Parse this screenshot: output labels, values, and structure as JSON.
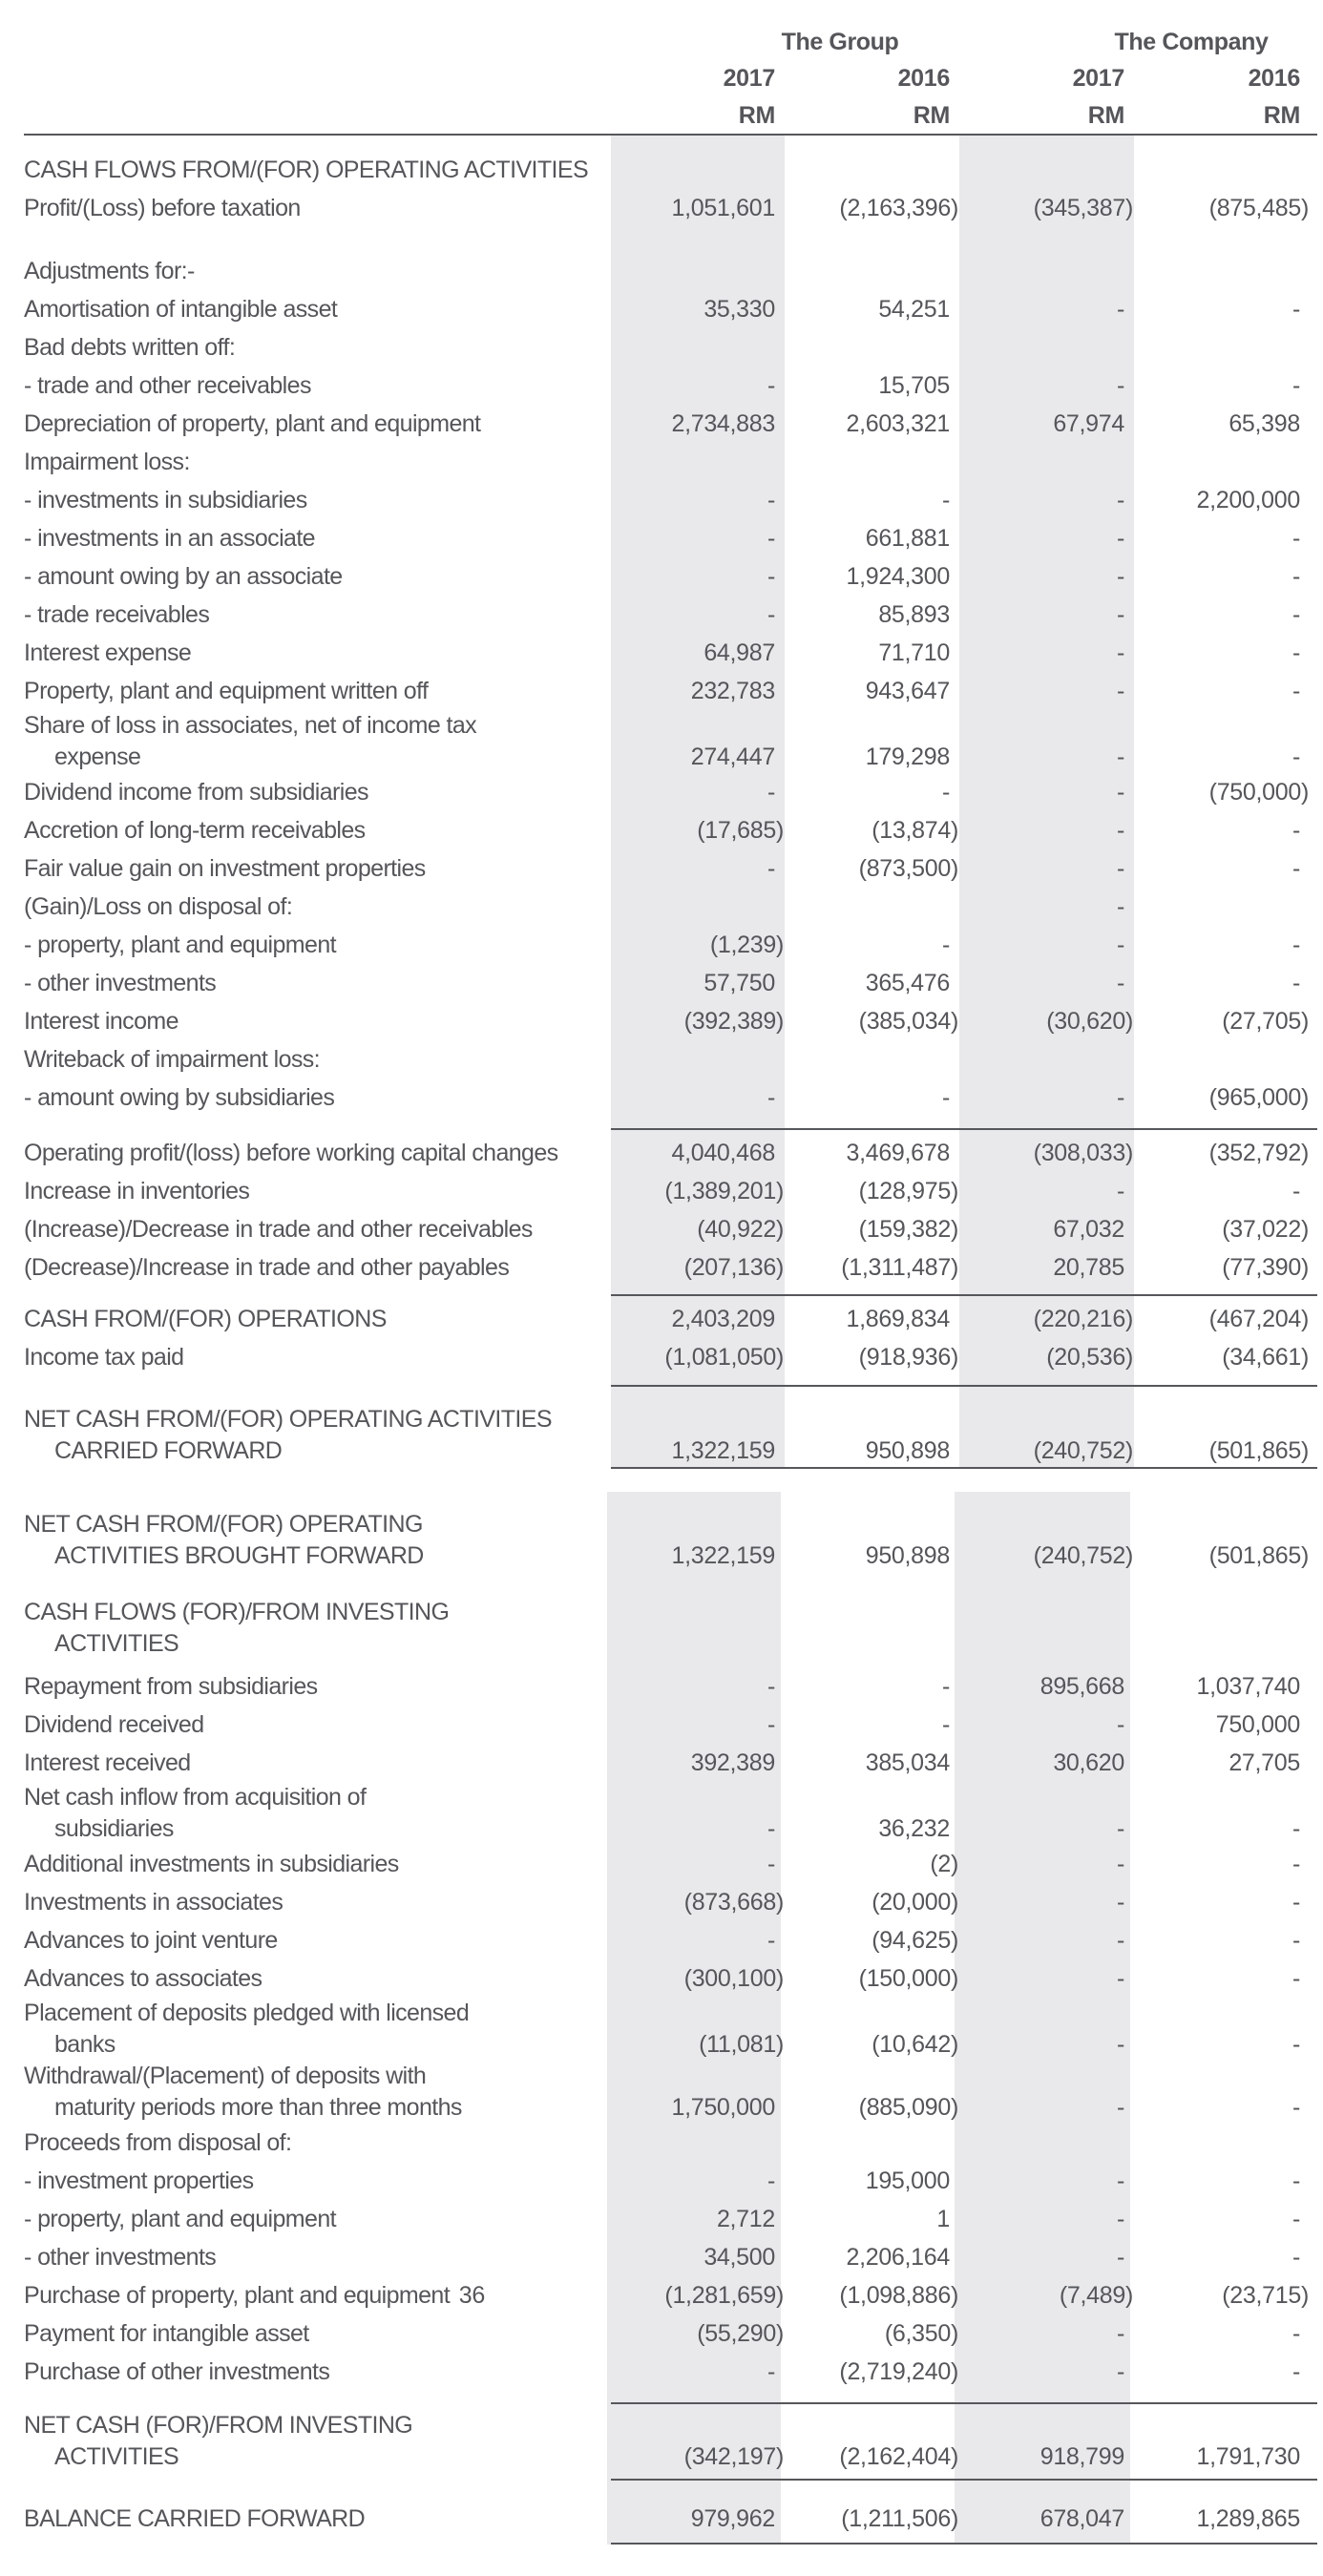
{
  "header": {
    "group_label": "The Group",
    "company_label": "The Company",
    "years": [
      "2017",
      "2016",
      "2017",
      "2016"
    ],
    "units": [
      "RM",
      "RM",
      "RM",
      "RM"
    ]
  },
  "colors": {
    "band": "#e9e9eb",
    "text": "#55565a",
    "rule": "#56575b"
  },
  "table": {
    "columns": [
      "The Group 2017 RM",
      "The Group 2016 RM",
      "The Company 2017 RM",
      "The Company 2016 RM"
    ],
    "first_block": [
      {
        "type": "gap",
        "h": 16
      },
      {
        "label": "CASH FLOWS FROM/(FOR) OPERATING ACTIVITIES",
        "g17": "",
        "g16": "",
        "c17": "",
        "c16": ""
      },
      {
        "label": "Profit/(Loss) before taxation",
        "g17": "1,051,601",
        "g16": "(2,163,396)",
        "c17": "(345,387)",
        "c16": "(875,485)"
      },
      {
        "type": "gap",
        "h": 26
      },
      {
        "label": "Adjustments for:-",
        "g17": "",
        "g16": "",
        "c17": "",
        "c16": ""
      },
      {
        "label": "Amortisation of intangible asset",
        "g17": "35,330",
        "g16": "54,251",
        "c17": "-",
        "c16": "-"
      },
      {
        "label": "Bad debts written off:",
        "g17": "",
        "g16": "",
        "c17": "",
        "c16": ""
      },
      {
        "label": "- trade and other receivables",
        "g17": "-",
        "g16": "15,705",
        "c17": "-",
        "c16": "-"
      },
      {
        "label": "Depreciation of property, plant and equipment",
        "g17": "2,734,883",
        "g16": "2,603,321",
        "c17": "67,974",
        "c16": "65,398"
      },
      {
        "label": "Impairment loss:",
        "g17": "",
        "g16": "",
        "c17": "",
        "c16": ""
      },
      {
        "label": "- investments in subsidiaries",
        "g17": "-",
        "g16": "-",
        "c17": "-",
        "c16": "2,200,000"
      },
      {
        "label": "- investments in an associate",
        "g17": "-",
        "g16": "661,881",
        "c17": "-",
        "c16": "-"
      },
      {
        "label": "- amount owing by an associate",
        "g17": "-",
        "g16": "1,924,300",
        "c17": "-",
        "c16": "-"
      },
      {
        "label": "- trade receivables",
        "g17": "-",
        "g16": "85,893",
        "c17": "-",
        "c16": "-"
      },
      {
        "label": "Interest expense",
        "g17": "64,987",
        "g16": "71,710",
        "c17": "-",
        "c16": "-"
      },
      {
        "label": "Property, plant and equipment written off",
        "g17": "232,783",
        "g16": "943,647",
        "c17": "-",
        "c16": "-"
      },
      {
        "label": "Share of loss in associates, net of income tax",
        "label2": "expense",
        "g17": "274,447",
        "g16": "179,298",
        "c17": "-",
        "c16": "-"
      },
      {
        "label": "Dividend income from subsidiaries",
        "g17": "-",
        "g16": "-",
        "c17": "-",
        "c16": "(750,000)"
      },
      {
        "label": "Accretion of long-term receivables",
        "g17": "(17,685)",
        "g16": "(13,874)",
        "c17": "-",
        "c16": "-"
      },
      {
        "label": "Fair value gain on investment properties",
        "g17": "-",
        "g16": "(873,500)",
        "c17": "-",
        "c16": "-"
      },
      {
        "label": "(Gain)/Loss on disposal of:",
        "g17": "",
        "g16": "",
        "c17": "-",
        "c16": ""
      },
      {
        "label": "- property, plant and equipment",
        "g17": "(1,239)",
        "g16": "-",
        "c17": "-",
        "c16": "-"
      },
      {
        "label": "- other investments",
        "g17": "57,750",
        "g16": "365,476",
        "c17": "-",
        "c16": "-"
      },
      {
        "label": "Interest income",
        "g17": "(392,389)",
        "g16": "(385,034)",
        "c17": "(30,620)",
        "c16": "(27,705)"
      },
      {
        "label": "Writeback of impairment loss:",
        "g17": "",
        "g16": "",
        "c17": "",
        "c16": ""
      },
      {
        "label": "- amount owing by subsidiaries",
        "g17": "-",
        "g16": "-",
        "c17": "-",
        "c16": "(965,000)"
      },
      {
        "type": "gap",
        "h": 12
      },
      {
        "type": "rule"
      },
      {
        "type": "gap",
        "h": 4
      },
      {
        "label": "Operating profit/(loss) before working capital changes",
        "g17": "4,040,468",
        "g16": "3,469,678",
        "c17": "(308,033)",
        "c16": "(352,792)"
      },
      {
        "label": "Increase in inventories",
        "g17": "(1,389,201)",
        "g16": "(128,975)",
        "c17": "-",
        "c16": "-"
      },
      {
        "label": "(Increase)/Decrease in trade and other receivables",
        "g17": "(40,922)",
        "g16": "(159,382)",
        "c17": "67,032",
        "c16": "(37,022)"
      },
      {
        "label": "(Decrease)/Increase in trade and other payables",
        "g17": "(207,136)",
        "g16": "(1,311,487)",
        "c17": "20,785",
        "c16": "(77,390)"
      },
      {
        "type": "gap",
        "h": 8
      },
      {
        "type": "rule"
      },
      {
        "type": "gap",
        "h": 4
      },
      {
        "label": "CASH FROM/(FOR) OPERATIONS",
        "g17": "2,403,209",
        "g16": "1,869,834",
        "c17": "(220,216)",
        "c16": "(467,204)"
      },
      {
        "label": "Income tax paid",
        "g17": "(1,081,050)",
        "g16": "(918,936)",
        "c17": "(20,536)",
        "c16": "(34,661)"
      },
      {
        "type": "gap",
        "h": 9
      },
      {
        "type": "rule"
      },
      {
        "type": "gap",
        "h": 18
      },
      {
        "label": "NET CASH FROM/(FOR) OPERATING ACTIVITIES",
        "label2": "CARRIED FORWARD",
        "g17": "1,322,159",
        "g16": "950,898",
        "c17": "(240,752)",
        "c16": "(501,865)"
      },
      {
        "type": "rule"
      }
    ],
    "second_block": [
      {
        "type": "gap",
        "h": 18
      },
      {
        "label": "NET CASH FROM/(FOR) OPERATING",
        "label2": "ACTIVITIES BROUGHT FORWARD",
        "g17": "1,322,159",
        "g16": "950,898",
        "c17": "(240,752)",
        "c16": "(501,865)"
      },
      {
        "type": "gap",
        "h": 26
      },
      {
        "label": "CASH FLOWS (FOR)/FROM INVESTING",
        "label2": "ACTIVITIES",
        "g17": "",
        "g16": "",
        "c17": "",
        "c16": ""
      },
      {
        "type": "gap",
        "h": 8
      },
      {
        "label": "Repayment from subsidiaries",
        "g17": "-",
        "g16": "-",
        "c17": "895,668",
        "c16": "1,037,740"
      },
      {
        "label": "Dividend received",
        "g17": "-",
        "g16": "-",
        "c17": "-",
        "c16": "750,000"
      },
      {
        "label": "Interest received",
        "g17": "392,389",
        "g16": "385,034",
        "c17": "30,620",
        "c16": "27,705"
      },
      {
        "label": "Net cash inflow from acquisition of",
        "label2": "subsidiaries",
        "g17": "-",
        "g16": "36,232",
        "c17": "-",
        "c16": "-"
      },
      {
        "label": "Additional investments in subsidiaries",
        "g17": "-",
        "g16": "(2)",
        "c17": "-",
        "c16": "-"
      },
      {
        "label": "Investments in associates",
        "g17": "(873,668)",
        "g16": "(20,000)",
        "c17": "-",
        "c16": "-"
      },
      {
        "label": "Advances to joint venture",
        "g17": "-",
        "g16": "(94,625)",
        "c17": "-",
        "c16": "-"
      },
      {
        "label": "Advances to associates",
        "g17": "(300,100)",
        "g16": "(150,000)",
        "c17": "-",
        "c16": "-"
      },
      {
        "label": "Placement of deposits pledged with licensed",
        "label2": "banks",
        "g17": "(11,081)",
        "g16": "(10,642)",
        "c17": "-",
        "c16": "-"
      },
      {
        "label": "Withdrawal/(Placement) of deposits with",
        "label2": "maturity periods more than three months",
        "g17": "1,750,000",
        "g16": "(885,090)",
        "c17": "-",
        "c16": "-"
      },
      {
        "label": "Proceeds from disposal of:",
        "g17": "",
        "g16": "",
        "c17": "",
        "c16": ""
      },
      {
        "label": "- investment properties",
        "g17": "-",
        "g16": "195,000",
        "c17": "-",
        "c16": "-"
      },
      {
        "label": "- property, plant and equipment",
        "g17": "2,712",
        "g16": "1",
        "c17": "-",
        "c16": "-"
      },
      {
        "label": "- other investments",
        "g17": "34,500",
        "g16": "2,206,164",
        "c17": "-",
        "c16": "-"
      },
      {
        "label": "Purchase of property, plant and equipment",
        "note": "36",
        "g17": "(1,281,659)",
        "g16": "(1,098,886)",
        "c17": "(7,489)",
        "c16": "(23,715)"
      },
      {
        "label": "Payment for intangible asset",
        "g17": "(55,290)",
        "g16": "(6,350)",
        "c17": "-",
        "c16": "-"
      },
      {
        "label": "Purchase of other investments",
        "g17": "-",
        "g16": "(2,719,240)",
        "c17": "-",
        "c16": "-"
      },
      {
        "type": "gap",
        "h": 12
      },
      {
        "type": "rule"
      },
      {
        "type": "gap",
        "h": 6
      },
      {
        "label": "NET CASH (FOR)/FROM INVESTING",
        "label2": "ACTIVITIES",
        "g17": "(342,197)",
        "g16": "(2,162,404)",
        "c17": "918,799",
        "c16": "1,791,730"
      },
      {
        "type": "gap",
        "h": 6
      },
      {
        "type": "rule"
      },
      {
        "type": "gap",
        "h": 20
      },
      {
        "label": "BALANCE CARRIED FORWARD",
        "g17": "979,962",
        "g16": "(1,211,506)",
        "c17": "678,047",
        "c16": "1,289,865"
      },
      {
        "type": "gap",
        "h": 5
      },
      {
        "type": "rule"
      }
    ]
  }
}
